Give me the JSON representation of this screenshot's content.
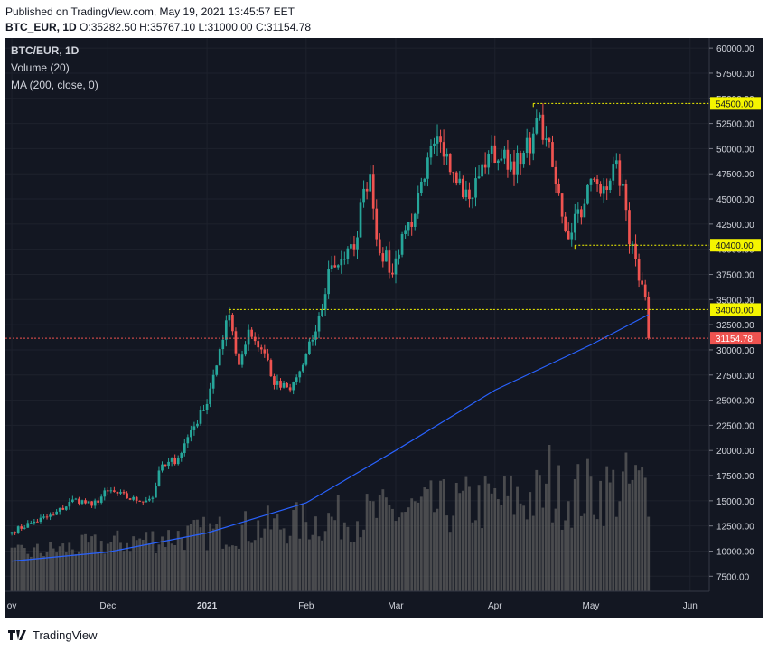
{
  "header": {
    "published": "Published on TradingView.com, May 19, 2021 13:45:57 EET",
    "symbol": "BTC_EUR, 1D",
    "ohlc": {
      "o": "O:35282.50",
      "h": "H:35767.10",
      "l": "L:31000.00",
      "c": "C:31154.78"
    }
  },
  "legend": {
    "title": "BTC/EUR, 1D",
    "volume": "Volume (20)",
    "ma": "MA (200, close, 0)"
  },
  "footer": {
    "brand": "TradingView"
  },
  "colors": {
    "background": "#131722",
    "up": "#26a69a",
    "down": "#ef5350",
    "ma": "#2962ff",
    "level_line": "#f5f500",
    "price_line": "#ef5350",
    "volume": "#5d5d5d"
  },
  "chart_data": {
    "type": "candlestick",
    "title": "BTC/EUR, 1D",
    "y_axis": {
      "side": "right",
      "range": [
        6000,
        61000
      ],
      "ticks": [
        "60000.00",
        "57500.00",
        "55000.00",
        "52500.00",
        "50000.00",
        "47500.00",
        "45000.00",
        "42500.00",
        "40000.00",
        "37500.00",
        "35000.00",
        "32500.00",
        "30000.00",
        "27500.00",
        "25000.00",
        "22500.00",
        "20000.00",
        "17500.00",
        "15000.00",
        "12500.00",
        "10000.00",
        "7500.00"
      ]
    },
    "x_axis": {
      "ticks": [
        {
          "label": "ov",
          "date": "2020-11-01"
        },
        {
          "label": "Dec",
          "date": "2020-12-01"
        },
        {
          "label": "2021",
          "date": "2021-01-01"
        },
        {
          "label": "Feb",
          "date": "2021-02-01"
        },
        {
          "label": "Mar",
          "date": "2021-03-01"
        },
        {
          "label": "Apr",
          "date": "2021-04-01"
        },
        {
          "label": "May",
          "date": "2021-05-01"
        },
        {
          "label": "Jun",
          "date": "2021-06-01"
        }
      ]
    },
    "close_series": {
      "start_date": "2020-11-01",
      "end_date": "2021-05-19",
      "anchors": [
        [
          "2020-11-01",
          11900
        ],
        [
          "2020-11-07",
          12800
        ],
        [
          "2020-11-14",
          13600
        ],
        [
          "2020-11-21",
          15200
        ],
        [
          "2020-11-26",
          14500
        ],
        [
          "2020-12-01",
          16000
        ],
        [
          "2020-12-10",
          15000
        ],
        [
          "2020-12-15",
          15300
        ],
        [
          "2020-12-17",
          18000
        ],
        [
          "2020-12-23",
          19300
        ],
        [
          "2020-12-27",
          22000
        ],
        [
          "2020-12-31",
          24000
        ],
        [
          "2021-01-03",
          27500
        ],
        [
          "2021-01-06",
          31000
        ],
        [
          "2021-01-08",
          33500
        ],
        [
          "2021-01-11",
          28500
        ],
        [
          "2021-01-14",
          32000
        ],
        [
          "2021-01-20",
          29000
        ],
        [
          "2021-01-22",
          26500
        ],
        [
          "2021-01-27",
          26000
        ],
        [
          "2021-01-31",
          28500
        ],
        [
          "2021-02-03",
          31000
        ],
        [
          "2021-02-06",
          34000
        ],
        [
          "2021-02-08",
          38000
        ],
        [
          "2021-02-12",
          39000
        ],
        [
          "2021-02-16",
          40000
        ],
        [
          "2021-02-19",
          46000
        ],
        [
          "2021-02-21",
          47500
        ],
        [
          "2021-02-23",
          41000
        ],
        [
          "2021-02-28",
          37500
        ],
        [
          "2021-03-03",
          41500
        ],
        [
          "2021-03-07",
          43500
        ],
        [
          "2021-03-10",
          47000
        ],
        [
          "2021-03-13",
          50500
        ],
        [
          "2021-03-17",
          49500
        ],
        [
          "2021-03-21",
          47000
        ],
        [
          "2021-03-24",
          45000
        ],
        [
          "2021-03-30",
          49500
        ],
        [
          "2021-04-03",
          49000
        ],
        [
          "2021-04-09",
          48500
        ],
        [
          "2021-04-13",
          51500
        ],
        [
          "2021-04-14",
          53000
        ],
        [
          "2021-04-17",
          51000
        ],
        [
          "2021-04-20",
          46500
        ],
        [
          "2021-04-24",
          41000
        ],
        [
          "2021-04-26",
          43500
        ],
        [
          "2021-04-29",
          44500
        ],
        [
          "2021-05-01",
          47000
        ],
        [
          "2021-05-04",
          45500
        ],
        [
          "2021-05-08",
          48500
        ],
        [
          "2021-05-11",
          46500
        ],
        [
          "2021-05-13",
          40500
        ],
        [
          "2021-05-15",
          39000
        ],
        [
          "2021-05-17",
          36500
        ],
        [
          "2021-05-18",
          35282.5
        ],
        [
          "2021-05-19",
          31154.78
        ]
      ]
    },
    "ma200": {
      "name": "MA (200, close, 0)",
      "points": [
        [
          "2020-11-01",
          9000
        ],
        [
          "2020-12-01",
          9900
        ],
        [
          "2021-01-01",
          11800
        ],
        [
          "2021-02-01",
          14800
        ],
        [
          "2021-03-01",
          20000
        ],
        [
          "2021-04-01",
          26000
        ],
        [
          "2021-05-01",
          30500
        ],
        [
          "2021-05-19",
          33500
        ]
      ]
    },
    "horizontal_levels": [
      {
        "value": 54500,
        "label": "54500.00",
        "from": "2021-04-13"
      },
      {
        "value": 40400,
        "label": "40400.00",
        "from": "2021-04-26"
      },
      {
        "value": 34000,
        "label": "34000.00",
        "from": "2021-01-08"
      }
    ],
    "last_price": {
      "value": 31154.78,
      "label": "31154.78"
    },
    "volume": {
      "name": "Volume (20)",
      "low": 7000,
      "high": 19000,
      "spike_date": "2021-04-18",
      "spike_value": 19200
    }
  }
}
